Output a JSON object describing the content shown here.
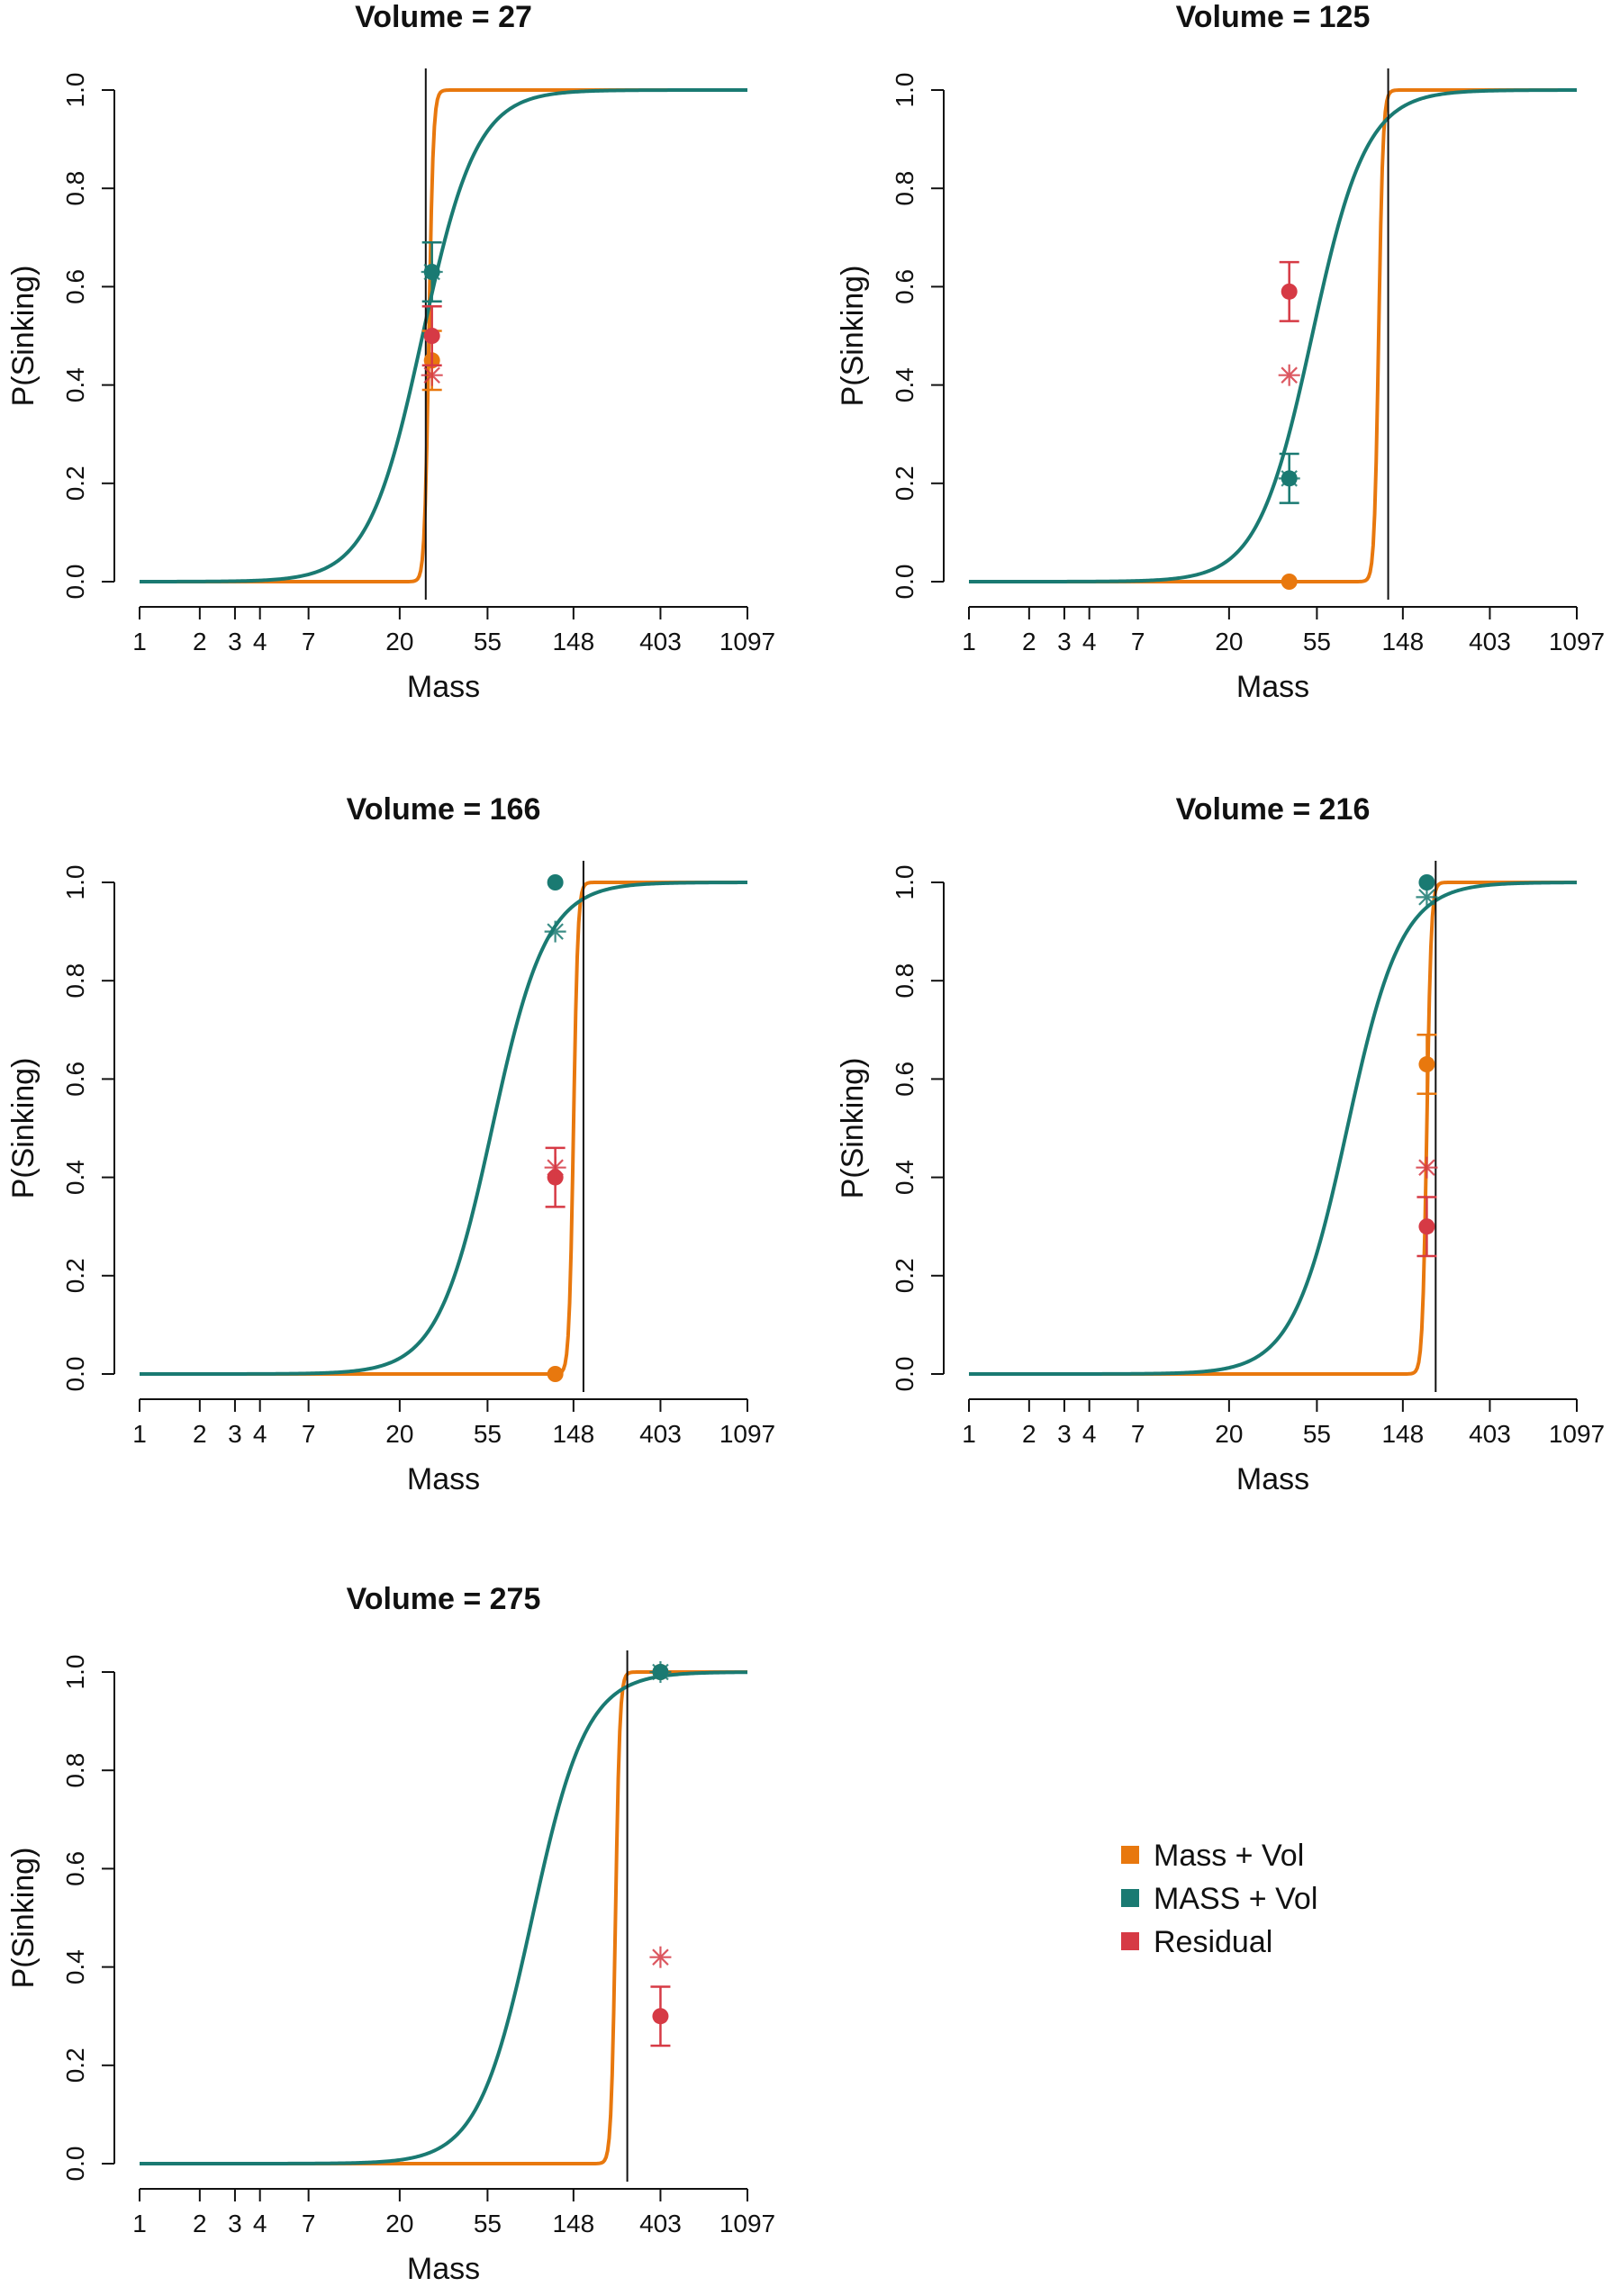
{
  "legend": {
    "position": "right of bottom-left panel",
    "entries": [
      {
        "label": "Mass + Vol",
        "color": "#E8780E"
      },
      {
        "label": "MASS + Vol",
        "color": "#1A7A72"
      },
      {
        "label": "Residual",
        "color": "#D63A45"
      }
    ]
  },
  "chart_data": [
    {
      "type": "line",
      "title": "Volume =  27",
      "xlabel": "Mass",
      "ylabel": "P(Sinking)",
      "x_ticks": [
        "1",
        "2",
        "3",
        "4",
        "7",
        "20",
        "55",
        "148",
        "403",
        "1097"
      ],
      "yticks": [
        "0.0",
        "0.2",
        "0.4",
        "0.6",
        "0.8",
        "1.0"
      ],
      "ylim": [
        0,
        1
      ],
      "vline": 27,
      "series": [
        {
          "name": "Mass + Vol",
          "color": "#E8780E",
          "midpoint": 28,
          "steepness": 40
        },
        {
          "name": "MASS + Vol",
          "color": "#1A7A72",
          "midpoint": 26,
          "steepness": 3.2
        }
      ],
      "points": [
        {
          "series": "Mass + Vol",
          "x": 29,
          "y": 0.45,
          "err": 0.06,
          "color": "#E8780E"
        },
        {
          "series": "MASS + Vol",
          "x": 29,
          "y": 0.63,
          "err": 0.06,
          "color": "#1A7A72"
        },
        {
          "series": "Residual",
          "x": 29,
          "y": 0.5,
          "err": 0.06,
          "color": "#D63A45"
        }
      ],
      "stars": [
        {
          "x": 29,
          "y": 0.42,
          "color": "#D63A45"
        },
        {
          "x": 29,
          "y": 0.63,
          "color": "#1A7A72"
        }
      ]
    },
    {
      "type": "line",
      "title": "Volume =  125",
      "xlabel": "Mass",
      "ylabel": "P(Sinking)",
      "x_ticks": [
        "1",
        "2",
        "3",
        "4",
        "7",
        "20",
        "55",
        "148",
        "403",
        "1097"
      ],
      "yticks": [
        "0.0",
        "0.2",
        "0.4",
        "0.6",
        "0.8",
        "1.0"
      ],
      "ylim": [
        0,
        1
      ],
      "vline": 125,
      "series": [
        {
          "name": "Mass + Vol",
          "color": "#E8780E",
          "midpoint": 112,
          "steepness": 40
        },
        {
          "name": "MASS + Vol",
          "color": "#1A7A72",
          "midpoint": 52,
          "steepness": 3.2
        }
      ],
      "points": [
        {
          "series": "Mass + Vol",
          "x": 40,
          "y": 0.0,
          "err": 0.0,
          "color": "#E8780E"
        },
        {
          "series": "MASS + Vol",
          "x": 40,
          "y": 0.21,
          "err": 0.05,
          "color": "#1A7A72"
        },
        {
          "series": "Residual",
          "x": 40,
          "y": 0.59,
          "err": 0.06,
          "color": "#D63A45"
        }
      ],
      "stars": [
        {
          "x": 40,
          "y": 0.42,
          "color": "#D63A45"
        },
        {
          "x": 40,
          "y": 0.21,
          "color": "#1A7A72"
        }
      ]
    },
    {
      "type": "line",
      "title": "Volume =  166",
      "xlabel": "Mass",
      "ylabel": "P(Sinking)",
      "x_ticks": [
        "1",
        "2",
        "3",
        "4",
        "7",
        "20",
        "55",
        "148",
        "403",
        "1097"
      ],
      "yticks": [
        "0.0",
        "0.2",
        "0.4",
        "0.6",
        "0.8",
        "1.0"
      ],
      "ylim": [
        0,
        1
      ],
      "vline": 166,
      "series": [
        {
          "name": "Mass + Vol",
          "color": "#E8780E",
          "midpoint": 148,
          "steepness": 40
        },
        {
          "name": "MASS + Vol",
          "color": "#1A7A72",
          "midpoint": 58,
          "steepness": 3.2
        }
      ],
      "points": [
        {
          "series": "Mass + Vol",
          "x": 120,
          "y": 0.0,
          "err": 0.0,
          "color": "#E8780E"
        },
        {
          "series": "MASS + Vol",
          "x": 120,
          "y": 1.0,
          "err": 0.0,
          "color": "#1A7A72"
        },
        {
          "series": "Residual",
          "x": 120,
          "y": 0.4,
          "err": 0.06,
          "color": "#D63A45"
        }
      ],
      "stars": [
        {
          "x": 120,
          "y": 0.42,
          "color": "#D63A45"
        },
        {
          "x": 120,
          "y": 0.9,
          "color": "#1A7A72"
        }
      ]
    },
    {
      "type": "line",
      "title": "Volume =  216",
      "xlabel": "Mass",
      "ylabel": "P(Sinking)",
      "x_ticks": [
        "1",
        "2",
        "3",
        "4",
        "7",
        "20",
        "55",
        "148",
        "403",
        "1097"
      ],
      "yticks": [
        "0.0",
        "0.2",
        "0.4",
        "0.6",
        "0.8",
        "1.0"
      ],
      "ylim": [
        0,
        1
      ],
      "vline": 216,
      "series": [
        {
          "name": "Mass + Vol",
          "color": "#E8780E",
          "midpoint": 195,
          "steepness": 40
        },
        {
          "name": "MASS + Vol",
          "color": "#1A7A72",
          "midpoint": 78,
          "steepness": 3.2
        }
      ],
      "points": [
        {
          "series": "Mass + Vol",
          "x": 195,
          "y": 0.63,
          "err": 0.06,
          "color": "#E8780E"
        },
        {
          "series": "MASS + Vol",
          "x": 195,
          "y": 1.0,
          "err": 0.0,
          "color": "#1A7A72"
        },
        {
          "series": "Residual",
          "x": 195,
          "y": 0.3,
          "err": 0.06,
          "color": "#D63A45"
        }
      ],
      "stars": [
        {
          "x": 195,
          "y": 0.42,
          "color": "#D63A45"
        },
        {
          "x": 195,
          "y": 0.97,
          "color": "#1A7A72"
        }
      ]
    },
    {
      "type": "line",
      "title": "Volume =  275",
      "xlabel": "Mass",
      "ylabel": "P(Sinking)",
      "x_ticks": [
        "1",
        "2",
        "3",
        "4",
        "7",
        "20",
        "55",
        "148",
        "403",
        "1097"
      ],
      "yticks": [
        "0.0",
        "0.2",
        "0.4",
        "0.6",
        "0.8",
        "1.0"
      ],
      "ylim": [
        0,
        1
      ],
      "vline": 275,
      "series": [
        {
          "name": "Mass + Vol",
          "color": "#E8780E",
          "midpoint": 240,
          "steepness": 40
        },
        {
          "name": "MASS + Vol",
          "color": "#1A7A72",
          "midpoint": 92,
          "steepness": 3.2
        }
      ],
      "points": [
        {
          "series": "Mass + Vol",
          "x": 403,
          "y": 1.0,
          "err": 0.0,
          "color": "#E8780E"
        },
        {
          "series": "MASS + Vol",
          "x": 403,
          "y": 1.0,
          "err": 0.0,
          "color": "#1A7A72"
        },
        {
          "series": "Residual",
          "x": 403,
          "y": 0.3,
          "err": 0.06,
          "color": "#D63A45"
        }
      ],
      "stars": [
        {
          "x": 403,
          "y": 0.42,
          "color": "#D63A45"
        },
        {
          "x": 403,
          "y": 1.0,
          "color": "#1A7A72"
        }
      ]
    }
  ]
}
